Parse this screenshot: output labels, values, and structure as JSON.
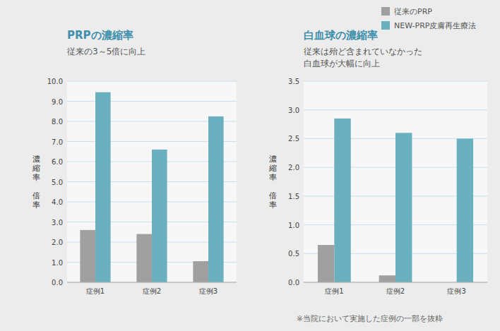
{
  "chart_data": [
    {
      "type": "bar",
      "title": "PRPの濃縮率",
      "subtitle": [
        "従来の3～5倍に向上"
      ],
      "y_label": "濃\n縮\n率\n\n倍\n率",
      "categories": [
        "症例1",
        "症例2",
        "症例3"
      ],
      "series": [
        {
          "name": "従来のPRP",
          "color": "#a0a0a0",
          "values": [
            2.6,
            2.4,
            1.05
          ]
        },
        {
          "name": "NEW-PRP皮膚再生療法",
          "color": "#6ab0bf",
          "values": [
            9.45,
            6.6,
            8.25
          ]
        }
      ],
      "ylim": [
        0,
        10.0
      ],
      "yticks": [
        {
          "value": 0,
          "label": "0.0"
        },
        {
          "value": 1,
          "label": "1.0"
        },
        {
          "value": 2,
          "label": "2.0"
        },
        {
          "value": 3,
          "label": "3.0"
        },
        {
          "value": 4,
          "label": "4.0"
        },
        {
          "value": 5,
          "label": "5.0"
        },
        {
          "value": 6,
          "label": "6.0"
        },
        {
          "value": 7,
          "label": "7.0"
        },
        {
          "value": 8,
          "label": "8.0"
        },
        {
          "value": 9,
          "label": "9.0"
        },
        {
          "value": 10,
          "label": "10.0"
        }
      ],
      "grid": true
    },
    {
      "type": "bar",
      "title": "白血球の濃縮率",
      "subtitle": [
        "従来は殆ど含まれていなかった",
        "白血球が大幅に向上"
      ],
      "y_label": "濃\n縮\n率\n\n倍\n率",
      "categories": [
        "症例1",
        "症例2",
        "症例3"
      ],
      "series": [
        {
          "name": "従来のPRP",
          "color": "#a0a0a0",
          "values": [
            0.65,
            0.12,
            0.0
          ]
        },
        {
          "name": "NEW-PRP皮膚再生療法",
          "color": "#6ab0bf",
          "values": [
            2.85,
            2.6,
            2.5
          ]
        }
      ],
      "ylim": [
        0,
        3.5
      ],
      "yticks": [
        {
          "value": 0,
          "label": "0.0"
        },
        0.5,
        {
          "value": 1,
          "label": "1.0"
        },
        1.5,
        {
          "value": 2,
          "label": "2.0"
        },
        2.5,
        {
          "value": 3,
          "label": "3.0"
        },
        3.5
      ],
      "grid": true,
      "legend": "top-right",
      "annotations": [
        "※当院において実施した症例の一部を抜粋"
      ]
    }
  ]
}
